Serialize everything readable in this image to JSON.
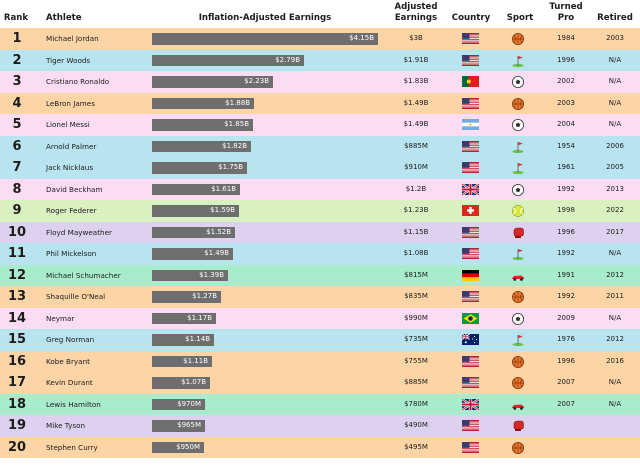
{
  "headers": {
    "rank": "Rank",
    "athlete": "Athlete",
    "inflation_adjusted": "Inflation-Adjusted Earnings",
    "adjusted_earnings": "Adjusted Earnings",
    "country": "Country",
    "sport": "Sport",
    "turned_pro": "Turned Pro",
    "retired": "Retired"
  },
  "colors": {
    "orange": "#fdd4a6",
    "blue": "#b7e4ef",
    "pink": "#fbdcf3",
    "green": "#d9f0c1",
    "purple": "#dcd2ef",
    "teal": "#a9eccd",
    "bar": "#6e6e6e"
  },
  "chart_data": {
    "type": "bar",
    "orientation": "horizontal",
    "title": "",
    "xlabel": "Inflation-Adjusted Earnings",
    "unit": "billion USD",
    "xlim": [
      0,
      4.15
    ],
    "categories": [
      "Michael Jordan",
      "Tiger Woods",
      "Cristiano Ronaldo",
      "LeBron James",
      "Lionel Messi",
      "Arnold Palmer",
      "Jack Nicklaus",
      "David Beckham",
      "Roger Federer",
      "Floyd Mayweather",
      "Phil Mickelson",
      "Michael Schumacher",
      "Shaquille O'Neal",
      "Neymar",
      "Greg Norman",
      "Kobe Bryant",
      "Kevin Durant",
      "Lewis Hamilton",
      "Mike Tyson",
      "Stephen Curry"
    ],
    "values": [
      4.15,
      2.79,
      2.23,
      1.88,
      1.85,
      1.82,
      1.75,
      1.61,
      1.59,
      1.52,
      1.49,
      1.39,
      1.27,
      1.17,
      1.14,
      1.11,
      1.07,
      0.97,
      0.965,
      0.95
    ]
  },
  "rows": [
    {
      "rank": "1",
      "name": "Michael Jordan",
      "infl": "$4.15B",
      "adj": "$3B",
      "country": "usa",
      "sport": "basketball",
      "turned": "1984",
      "retired": "2003",
      "color": "orange"
    },
    {
      "rank": "2",
      "name": "Tiger Woods",
      "infl": "$2.79B",
      "adj": "$1.91B",
      "country": "usa",
      "sport": "golf",
      "turned": "1996",
      "retired": "N/A",
      "color": "blue"
    },
    {
      "rank": "3",
      "name": "Cristiano Ronaldo",
      "infl": "$2.23B",
      "adj": "$1.83B",
      "country": "portugal",
      "sport": "soccer",
      "turned": "2002",
      "retired": "N/A",
      "color": "pink"
    },
    {
      "rank": "4",
      "name": "LeBron James",
      "infl": "$1.88B",
      "adj": "$1.49B",
      "country": "usa",
      "sport": "basketball",
      "turned": "2003",
      "retired": "N/A",
      "color": "orange"
    },
    {
      "rank": "5",
      "name": "Lionel Messi",
      "infl": "$1.85B",
      "adj": "$1.49B",
      "country": "argentina",
      "sport": "soccer",
      "turned": "2004",
      "retired": "N/A",
      "color": "pink"
    },
    {
      "rank": "6",
      "name": "Arnold Palmer",
      "infl": "$1.82B",
      "adj": "$885M",
      "country": "usa",
      "sport": "golf",
      "turned": "1954",
      "retired": "2006",
      "color": "blue"
    },
    {
      "rank": "7",
      "name": "Jack Nicklaus",
      "infl": "$1.75B",
      "adj": "$910M",
      "country": "usa",
      "sport": "golf",
      "turned": "1961",
      "retired": "2005",
      "color": "blue"
    },
    {
      "rank": "8",
      "name": "David Beckham",
      "infl": "$1.61B",
      "adj": "$1.2B",
      "country": "uk",
      "sport": "soccer",
      "turned": "1992",
      "retired": "2013",
      "color": "pink"
    },
    {
      "rank": "9",
      "name": "Roger Federer",
      "infl": "$1.59B",
      "adj": "$1.23B",
      "country": "switzerland",
      "sport": "tennis",
      "turned": "1998",
      "retired": "2022",
      "color": "green"
    },
    {
      "rank": "10",
      "name": "Floyd Mayweather",
      "infl": "$1.52B",
      "adj": "$1.15B",
      "country": "usa",
      "sport": "boxing",
      "turned": "1996",
      "retired": "2017",
      "color": "purple"
    },
    {
      "rank": "11",
      "name": "Phil Mickelson",
      "infl": "$1.49B",
      "adj": "$1.08B",
      "country": "usa",
      "sport": "golf",
      "turned": "1992",
      "retired": "N/A",
      "color": "blue"
    },
    {
      "rank": "12",
      "name": "Michael Schumacher",
      "infl": "$1.39B",
      "adj": "$815M",
      "country": "germany",
      "sport": "racing",
      "turned": "1991",
      "retired": "2012",
      "color": "teal"
    },
    {
      "rank": "13",
      "name": "Shaquille O'Neal",
      "infl": "$1.27B",
      "adj": "$835M",
      "country": "usa",
      "sport": "basketball",
      "turned": "1992",
      "retired": "2011",
      "color": "orange"
    },
    {
      "rank": "14",
      "name": "Neymar",
      "infl": "$1.17B",
      "adj": "$990M",
      "country": "brazil",
      "sport": "soccer",
      "turned": "2009",
      "retired": "N/A",
      "color": "pink"
    },
    {
      "rank": "15",
      "name": "Greg Norman",
      "infl": "$1.14B",
      "adj": "$735M",
      "country": "australia",
      "sport": "golf",
      "turned": "1976",
      "retired": "2012",
      "color": "blue"
    },
    {
      "rank": "16",
      "name": "Kobe Bryant",
      "infl": "$1.11B",
      "adj": "$755M",
      "country": "usa",
      "sport": "basketball",
      "turned": "1996",
      "retired": "2016",
      "color": "orange"
    },
    {
      "rank": "17",
      "name": "Kevin Durant",
      "infl": "$1.07B",
      "adj": "$885M",
      "country": "usa",
      "sport": "basketball",
      "turned": "2007",
      "retired": "N/A",
      "color": "orange"
    },
    {
      "rank": "18",
      "name": "Lewis Hamilton",
      "infl": "$970M",
      "adj": "$780M",
      "country": "uk",
      "sport": "racing",
      "turned": "2007",
      "retired": "N/A",
      "color": "teal"
    },
    {
      "rank": "19",
      "name": "Mike Tyson",
      "infl": "$965M",
      "adj": "$490M",
      "country": "usa",
      "sport": "boxing",
      "turned": "",
      "retired": "",
      "color": "purple"
    },
    {
      "rank": "20",
      "name": "Stephen Curry",
      "infl": "$950M",
      "adj": "$495M",
      "country": "usa",
      "sport": "basketball",
      "turned": "",
      "retired": "",
      "color": "orange"
    }
  ]
}
